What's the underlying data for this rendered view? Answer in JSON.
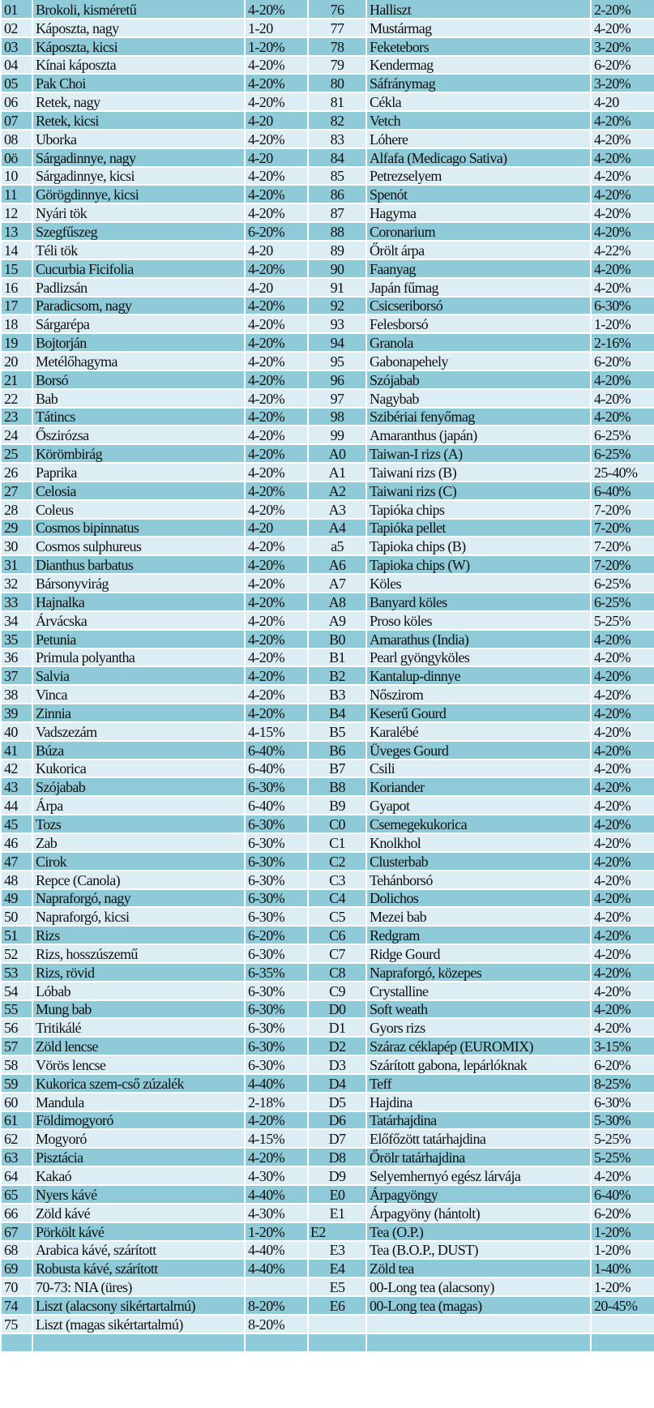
{
  "colors": {
    "dark_row": "#8ecad8",
    "light_row": "#dcedf3"
  },
  "rows": [
    [
      "01",
      "Brokoli, kisméretű",
      "4-20%",
      "76",
      "Halliszt",
      "2-20%"
    ],
    [
      "02",
      "Káposzta, nagy",
      "1-20",
      "77",
      "Mustármag",
      "4-20%"
    ],
    [
      "03",
      "Káposzta, kicsi",
      "1-20%",
      "78",
      "Feketebors",
      "3-20%"
    ],
    [
      "04",
      "Kínai káposzta",
      "4-20%",
      "79",
      "Kendermag",
      "6-20%"
    ],
    [
      "05",
      "Pak Choi",
      "4-20%",
      "80",
      "Sáfránymag",
      "3-20%"
    ],
    [
      "06",
      "Retek, nagy",
      "4-20%",
      "81",
      "Cékla",
      "4-20"
    ],
    [
      "07",
      "Retek, kicsi",
      "4-20",
      "82",
      "Vetch",
      "4-20%"
    ],
    [
      "08",
      "Uborka",
      "4-20%",
      "83",
      "Lóhere",
      "4-20%"
    ],
    [
      "0ö",
      "Sárgadinnye, nagy",
      "4-20",
      "84",
      "Alfafa (Medicago Sativa)",
      "4-20%"
    ],
    [
      "10",
      "Sárgadinnye, kicsi",
      "4-20%",
      "85",
      "Petrezselyem",
      "4-20%"
    ],
    [
      "11",
      "Görögdinnye, kicsi",
      "4-20%",
      "86",
      "Spenót",
      "4-20%"
    ],
    [
      "12",
      "Nyári tök",
      "4-20%",
      "87",
      "Hagyma",
      "4-20%"
    ],
    [
      "13",
      "Szegfűszeg",
      "6-20%",
      "88",
      "Coronarium",
      "4-20%"
    ],
    [
      "14",
      "Téli tök",
      "4-20",
      "89",
      "Őrölt árpa",
      "4-22%"
    ],
    [
      "15",
      "Cucurbia Ficifolia",
      "4-20%",
      "90",
      "Faanyag",
      "4-20%"
    ],
    [
      "16",
      "Padlizsán",
      "4-20",
      "91",
      "Japán fűmag",
      "4-20%"
    ],
    [
      "17",
      "Paradicsom, nagy",
      "4-20%",
      "92",
      "Csicseriborsó",
      "6-30%"
    ],
    [
      "18",
      "Sárgarépa",
      "4-20%",
      "93",
      "Felesborsó",
      "1-20%"
    ],
    [
      "19",
      "Bojtorján",
      "4-20%",
      "94",
      "Granola",
      "2-16%"
    ],
    [
      "20",
      "Metélőhagyma",
      "4-20%",
      "95",
      "Gabonapehely",
      "6-20%"
    ],
    [
      "21",
      "Borsó",
      "4-20%",
      "96",
      "Szójabab",
      "4-20%"
    ],
    [
      "22",
      "Bab",
      "4-20%",
      "97",
      "Nagybab",
      "4-20%"
    ],
    [
      "23",
      "Tátincs",
      "4-20%",
      "98",
      "Szibériai fenyőmag",
      "4-20%"
    ],
    [
      "24",
      "Őszirózsa",
      "4-20%",
      "99",
      "Amaranthus (japán)",
      "6-25%"
    ],
    [
      "25",
      "Körömbirág",
      "4-20%",
      "A0",
      "Taiwan-I rizs (A)",
      "6-25%"
    ],
    [
      "26",
      "Paprika",
      "4-20%",
      "A1",
      "Taiwani rizs (B)",
      "25-40%"
    ],
    [
      "27",
      "Celosia",
      "4-20%",
      "A2",
      "Taiwani rizs (C)",
      "6-40%"
    ],
    [
      "28",
      "Coleus",
      "4-20%",
      "A3",
      "Tapióka chips",
      "7-20%"
    ],
    [
      "29",
      "Cosmos bipinnatus",
      "4-20",
      "A4",
      "Tapióka pellet",
      "7-20%"
    ],
    [
      "30",
      "Cosmos sulphureus",
      "4-20%",
      "a5",
      "Tapioka chips (B)",
      "7-20%"
    ],
    [
      "31",
      "Dianthus barbatus",
      "4-20%",
      "A6",
      "Tapioka chips (W)",
      "7-20%"
    ],
    [
      "32",
      "Bársonyvirág",
      "4-20%",
      "A7",
      "Köles",
      "6-25%"
    ],
    [
      "33",
      "Hajnalka",
      "4-20%",
      "A8",
      "Banyard köles",
      "6-25%"
    ],
    [
      "34",
      "Árvácska",
      "4-20%",
      "A9",
      "Proso köles",
      "5-25%"
    ],
    [
      "35",
      "Petunia",
      "4-20%",
      "B0",
      "Amarathus (India)",
      "4-20%"
    ],
    [
      "36",
      "Primula polyantha",
      "4-20%",
      "B1",
      "Pearl gyöngyköles",
      "4-20%"
    ],
    [
      "37",
      "Salvia",
      "4-20%",
      "B2",
      "Kantalup-dinnye",
      "4-20%"
    ],
    [
      "38",
      "Vinca",
      "4-20%",
      "B3",
      "Nőszirom",
      "4-20%"
    ],
    [
      "39",
      "Zinnia",
      "4-20%",
      "B4",
      "Keserű Gourd",
      "4-20%"
    ],
    [
      "40",
      "Vadszezám",
      "4-15%",
      "B5",
      "Karalébé",
      "4-20%"
    ],
    [
      "41",
      "Búza",
      "6-40%",
      "B6",
      "Üveges Gourd",
      "4-20%"
    ],
    [
      "42",
      "Kukorica",
      "6-40%",
      "B7",
      "Csili",
      "4-20%"
    ],
    [
      "43",
      "Szójabab",
      "6-30%",
      "B8",
      "Koriander",
      "4-20%"
    ],
    [
      "44",
      "Árpa",
      "6-40%",
      "B9",
      "Gyapot",
      "4-20%"
    ],
    [
      "45",
      "Tozs",
      "6-30%",
      "C0",
      "Csemegekukorica",
      "4-20%"
    ],
    [
      "46",
      "Zab",
      "6-30%",
      "C1",
      "Knolkhol",
      "4-20%"
    ],
    [
      "47",
      "Cirok",
      "6-30%",
      "C2",
      "Clusterbab",
      "4-20%"
    ],
    [
      "48",
      "Repce (Canola)",
      "6-30%",
      "C3",
      "Tehánborsó",
      "4-20%"
    ],
    [
      "49",
      "Napraforgó, nagy",
      "6-30%",
      "C4",
      "Dolichos",
      "4-20%"
    ],
    [
      "50",
      "Napraforgó, kicsi",
      "6-30%",
      "C5",
      "Mezei bab",
      "4-20%"
    ],
    [
      "51",
      "Rizs",
      "6-20%",
      "C6",
      "Redgram",
      "4-20%"
    ],
    [
      "52",
      "Rizs, hosszúszemű",
      "6-30%",
      "C7",
      "Ridge Gourd",
      "4-20%"
    ],
    [
      "53",
      "Rizs, rövid",
      "6-35%",
      "C8",
      "Napraforgó, közepes",
      "4-20%"
    ],
    [
      "54",
      "Lóbab",
      "6-30%",
      "C9",
      "Crystalline",
      "4-20%"
    ],
    [
      "55",
      "Mung bab",
      "6-30%",
      "D0",
      "Soft weath",
      "4-20%"
    ],
    [
      "56",
      "Tritikálé",
      "6-30%",
      "D1",
      "Gyors rizs",
      "4-20%"
    ],
    [
      "57",
      "Zöld lencse",
      "6-30%",
      "D2",
      "Száraz céklapép (EUROMIX)",
      "3-15%"
    ],
    [
      "58",
      "Vörös lencse",
      "6-30%",
      "D3",
      "Szárított gabona, lepárlóknak",
      "6-20%"
    ],
    [
      "59",
      "Kukorica szem-cső zúzalék",
      "4-40%",
      "D4",
      "Teff",
      "8-25%"
    ],
    [
      "60",
      "Mandula",
      "2-18%",
      "D5",
      "Hajdina",
      "6-30%"
    ],
    [
      "61",
      "Földimogyoró",
      "4-20%",
      "D6",
      "Tatárhajdina",
      "5-30%"
    ],
    [
      "62",
      "Mogyoró",
      "4-15%",
      "D7",
      "Előfőzött tatárhajdina",
      "5-25%"
    ],
    [
      "63",
      "Pisztácia",
      "4-20%",
      "D8",
      "Őrölr tatárhajdina",
      "5-25%"
    ],
    [
      "64",
      "Kakaó",
      "4-30%",
      "D9",
      "Selyemhernyó egész lárvája",
      "4-20%"
    ],
    [
      "65",
      "Nyers kávé",
      "4-40%",
      "E0",
      "Árpagyöngy",
      "6-40%"
    ],
    [
      "66",
      "Zöld kávé",
      "4-30%",
      "E1",
      "Árpagyöny (hántolt)",
      "6-20%"
    ],
    [
      "67",
      "Pörkölt kávé",
      "1-20%",
      "E2",
      "Tea (O.P.)",
      "1-20%"
    ],
    [
      "68",
      "Arabica kávé, szárított",
      "4-40%",
      "E3",
      "Tea (B.O.P., DUST)",
      "1-20%"
    ],
    [
      "69",
      "Robusta kávé, szárított",
      "4-40%",
      "E4",
      "Zöld tea",
      "1-40%"
    ],
    [
      "70",
      "70-73: NIA (üres)",
      "",
      "E5",
      "00-Long tea (alacsony)",
      "1-20%"
    ],
    [
      "74",
      "Liszt (alacsony sikértartalmú)",
      "8-20%",
      "E6",
      "00-Long tea (magas)",
      "20-45%"
    ],
    [
      "75",
      "Liszt (magas sikértartalmú)",
      "8-20%",
      "",
      "",
      ""
    ],
    [
      "",
      "",
      "",
      "",
      "",
      ""
    ]
  ]
}
